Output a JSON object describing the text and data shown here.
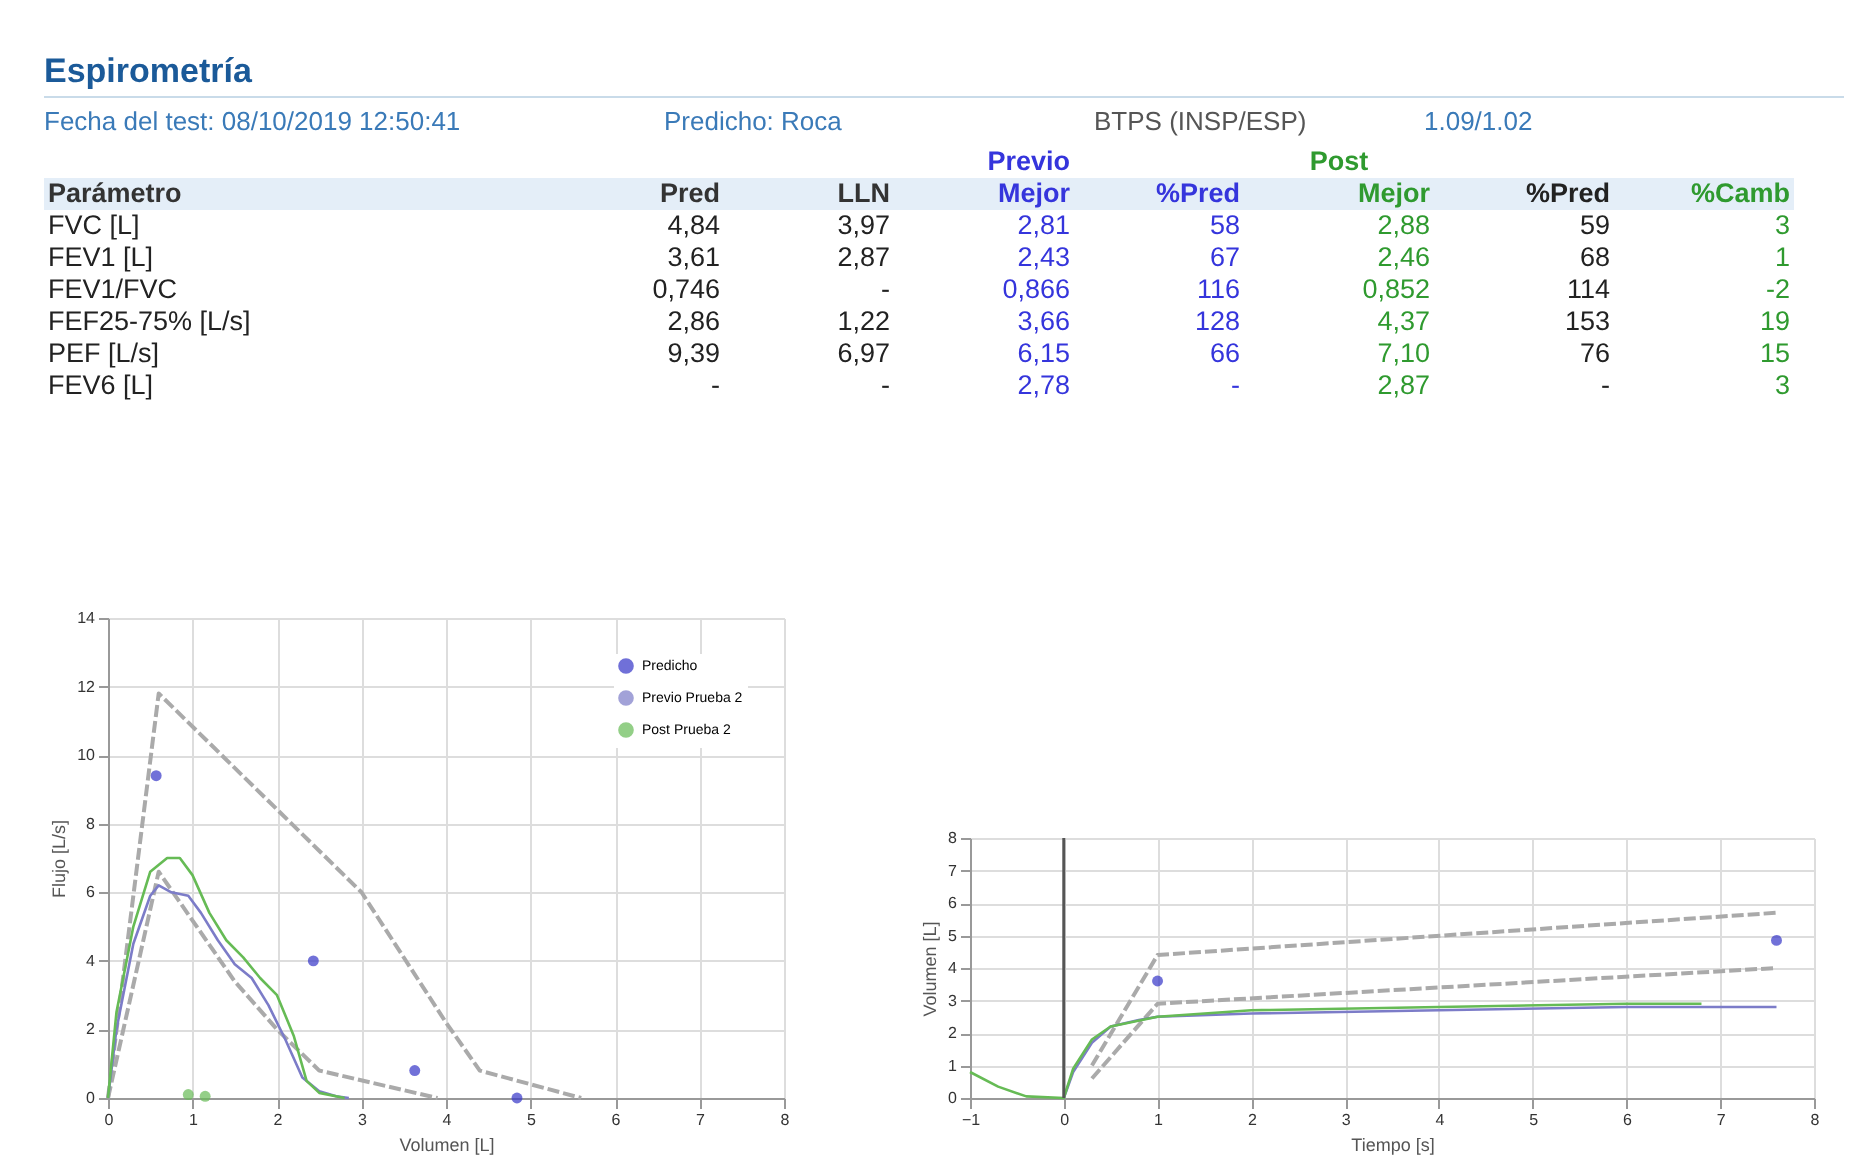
{
  "chart_data": [
    {
      "type": "other",
      "title": "Espirometría",
      "subtitle": "Fecha del test: 08/10/2019 12:50:41",
      "annotations": [
        "Predicho: Roca",
        "BTPS (INSP/ESP)",
        "1.09/1.02",
        "Previo",
        "Post",
        "Parámetro",
        "Pred",
        "LLN",
        "Mejor",
        "%Pred",
        "Mejor",
        "%Pred",
        "%Camb",
        "FVC [L]",
        "4,84",
        "3,97",
        "2,81",
        "58",
        "2,88",
        "59",
        "3",
        "FEV1 [L]",
        "3,61",
        "2,87",
        "2,43",
        "67",
        "2,46",
        "68",
        "1",
        "FEV1/FVC",
        "0,746",
        "-",
        "0,866",
        "116",
        "0,852",
        "114",
        "-2",
        "FEF25-75% [L/s]",
        "2,86",
        "1,22",
        "3,66",
        "128",
        "4,37",
        "153",
        "19",
        "PEF [L/s]",
        "9,39",
        "6,97",
        "6,15",
        "66",
        "7,10",
        "76",
        "15",
        "FEV6 [L]",
        "-",
        "-",
        "2,78",
        "-",
        "2,87",
        "-",
        "3"
      ]
    },
    {
      "type": "line",
      "xlabel": "Volumen [L]",
      "ylabel": "Flujo [L/s]",
      "xlim": [
        0,
        8
      ],
      "xticks": [
        0,
        1,
        2,
        3,
        4,
        5,
        6,
        7,
        8
      ],
      "ylim": [
        0,
        14
      ],
      "yticks": [
        0,
        2,
        4,
        6,
        8,
        10,
        12,
        14
      ],
      "grid": true,
      "legend": "top right",
      "series": [
        {
          "color": "#aaaaaa",
          "line_style": "dashed",
          "x": [
            0,
            0.6,
            3,
            4,
            4.4,
            5.6
          ],
          "values": [
            0,
            11.8,
            6,
            2.2,
            0.8,
            0
          ]
        },
        {
          "color": "#aaaaaa",
          "line_style": "dashed",
          "x": [
            0,
            0.6,
            1.5,
            2,
            2.5,
            3.9
          ],
          "values": [
            0,
            6.6,
            3.4,
            2,
            0.8,
            0
          ]
        },
        {
          "name": "Predicho",
          "type": "scatter",
          "color": "#3535c8",
          "x": [
            0.57,
            2.43,
            3.63,
            4.84
          ],
          "values": [
            9.4,
            4.0,
            0.8,
            0
          ]
        },
        {
          "name": "Previo Prueba 2",
          "color": "#7c7cc8",
          "x": [
            0,
            0.1,
            0.3,
            0.5,
            0.6,
            0.75,
            0.95,
            1.1,
            1.3,
            1.5,
            1.7,
            1.9,
            2.1,
            2.3,
            2.5,
            2.7,
            2.85
          ],
          "values": [
            0,
            2,
            4.5,
            5.9,
            6.2,
            6.0,
            5.9,
            5.4,
            4.6,
            3.9,
            3.5,
            2.7,
            1.7,
            0.6,
            0.2,
            0.05,
            0
          ]
        },
        {
          "name": "Post Prueba 2",
          "color": "#66bb55",
          "x": [
            0,
            0.1,
            0.3,
            0.5,
            0.7,
            0.85,
            1.0,
            1.2,
            1.4,
            1.6,
            1.8,
            2.0,
            2.2,
            2.35,
            2.5,
            2.8
          ],
          "values": [
            0,
            2.5,
            5,
            6.6,
            7.0,
            7.0,
            6.5,
            5.4,
            4.6,
            4.1,
            3.5,
            3.0,
            1.8,
            0.5,
            0.15,
            0
          ]
        },
        {
          "type": "scatter",
          "color": "#66bb55",
          "x": [
            0.95,
            1.15
          ],
          "values": [
            0.1,
            0.05
          ]
        }
      ]
    },
    {
      "type": "line",
      "xlabel": "Tiempo [s]",
      "ylabel": "Volumen [L]",
      "xlim": [
        -1,
        8
      ],
      "xticks": [
        -1,
        0,
        1,
        2,
        3,
        4,
        5,
        6,
        7,
        8
      ],
      "ylim": [
        0,
        8
      ],
      "yticks": [
        0,
        1,
        2,
        3,
        4,
        5,
        6,
        7,
        8
      ],
      "grid": true,
      "ref_lines": [
        {
          "axis": "x",
          "value": 0,
          "color": "#555555"
        }
      ],
      "series": [
        {
          "color": "#aaaaaa",
          "line_style": "dashed",
          "x": [
            0.3,
            1,
            7.6
          ],
          "values": [
            1,
            4.4,
            5.7
          ]
        },
        {
          "color": "#aaaaaa",
          "line_style": "dashed",
          "x": [
            0.3,
            1,
            7.6
          ],
          "values": [
            0.6,
            2.9,
            4.0
          ]
        },
        {
          "type": "scatter",
          "color": "#3535c8",
          "x": [
            1,
            7.6
          ],
          "values": [
            3.6,
            4.85
          ]
        },
        {
          "color": "#7c7cc8",
          "x": [
            0,
            0.1,
            0.3,
            0.5,
            0.8,
            1,
            2,
            4,
            6,
            7.6
          ],
          "values": [
            0,
            0.8,
            1.7,
            2.2,
            2.4,
            2.5,
            2.6,
            2.7,
            2.8,
            2.8
          ]
        },
        {
          "color": "#66bb55",
          "x": [
            -1,
            -0.7,
            -0.4,
            0,
            0.1,
            0.3,
            0.5,
            1,
            2,
            4,
            6,
            6.8
          ],
          "values": [
            0.8,
            0.35,
            0.05,
            0,
            0.9,
            1.8,
            2.2,
            2.5,
            2.7,
            2.8,
            2.9,
            2.9
          ]
        }
      ]
    }
  ]
}
